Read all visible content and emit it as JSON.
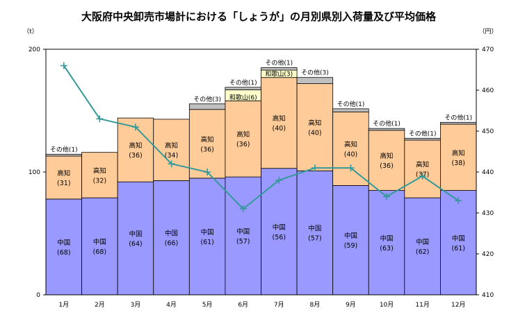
{
  "chart_data": {
    "type": "bar",
    "stacked": true,
    "title": "大阪府中央卸売市場計における「しょうが」の月別県別入荷量及び平均価格",
    "y_left_unit": "（t）",
    "y_right_unit": "（円）",
    "ylim_left": [
      0,
      200
    ],
    "y_left_ticks": [
      0,
      100,
      200
    ],
    "ylim_right": [
      410,
      470
    ],
    "y_right_ticks": [
      410,
      420,
      430,
      440,
      450,
      460,
      470
    ],
    "categories": [
      "1月",
      "2月",
      "3月",
      "4月",
      "5月",
      "6月",
      "7月",
      "8月",
      "9月",
      "10月",
      "11月",
      "12月"
    ],
    "series": [
      {
        "name": "中国",
        "color": "#9999ff",
        "values": [
          78,
          79,
          92,
          93,
          95,
          96,
          103,
          101,
          89,
          85,
          79,
          85
        ],
        "labels": [
          "(68)",
          "(68)",
          "(64)",
          "(66)",
          "(61)",
          "(57)",
          "(56)",
          "(57)",
          "(59)",
          "(63)",
          "(62)",
          "(61)"
        ]
      },
      {
        "name": "高知",
        "color": "#ffcc99",
        "values": [
          35,
          37,
          52,
          50,
          56,
          62,
          74,
          71,
          60,
          49,
          47,
          54
        ],
        "labels": [
          "(31)",
          "(32)",
          "(36)",
          "(34)",
          "(36)",
          "(36)",
          "(40)",
          "(40)",
          "(40)",
          "(36)",
          "(37)",
          "(38)"
        ]
      },
      {
        "name": "和歌山",
        "color": "#ffffcc",
        "values": [
          0,
          0,
          0,
          0,
          0,
          9,
          6,
          0,
          0,
          0,
          0,
          0
        ],
        "labels": [
          "",
          "",
          "",
          "",
          "",
          "(6)",
          "(3)",
          "",
          "",
          "",
          "",
          ""
        ]
      },
      {
        "name": "その他",
        "color": "#c0c0c0",
        "values": [
          1.5,
          0,
          0,
          0,
          4.5,
          2,
          2,
          5,
          2.5,
          1.5,
          1.5,
          1.5
        ],
        "labels": [
          "(1)",
          "",
          "",
          "",
          "(3)",
          "(1)",
          "(1)",
          "(3)",
          "(1)",
          "(1)",
          "(1)",
          "(1)"
        ]
      }
    ],
    "price_line": {
      "axis": "right",
      "color": "#339999",
      "values": [
        466,
        453,
        451,
        442,
        440,
        431,
        438,
        441,
        441,
        434,
        439,
        433
      ]
    }
  }
}
